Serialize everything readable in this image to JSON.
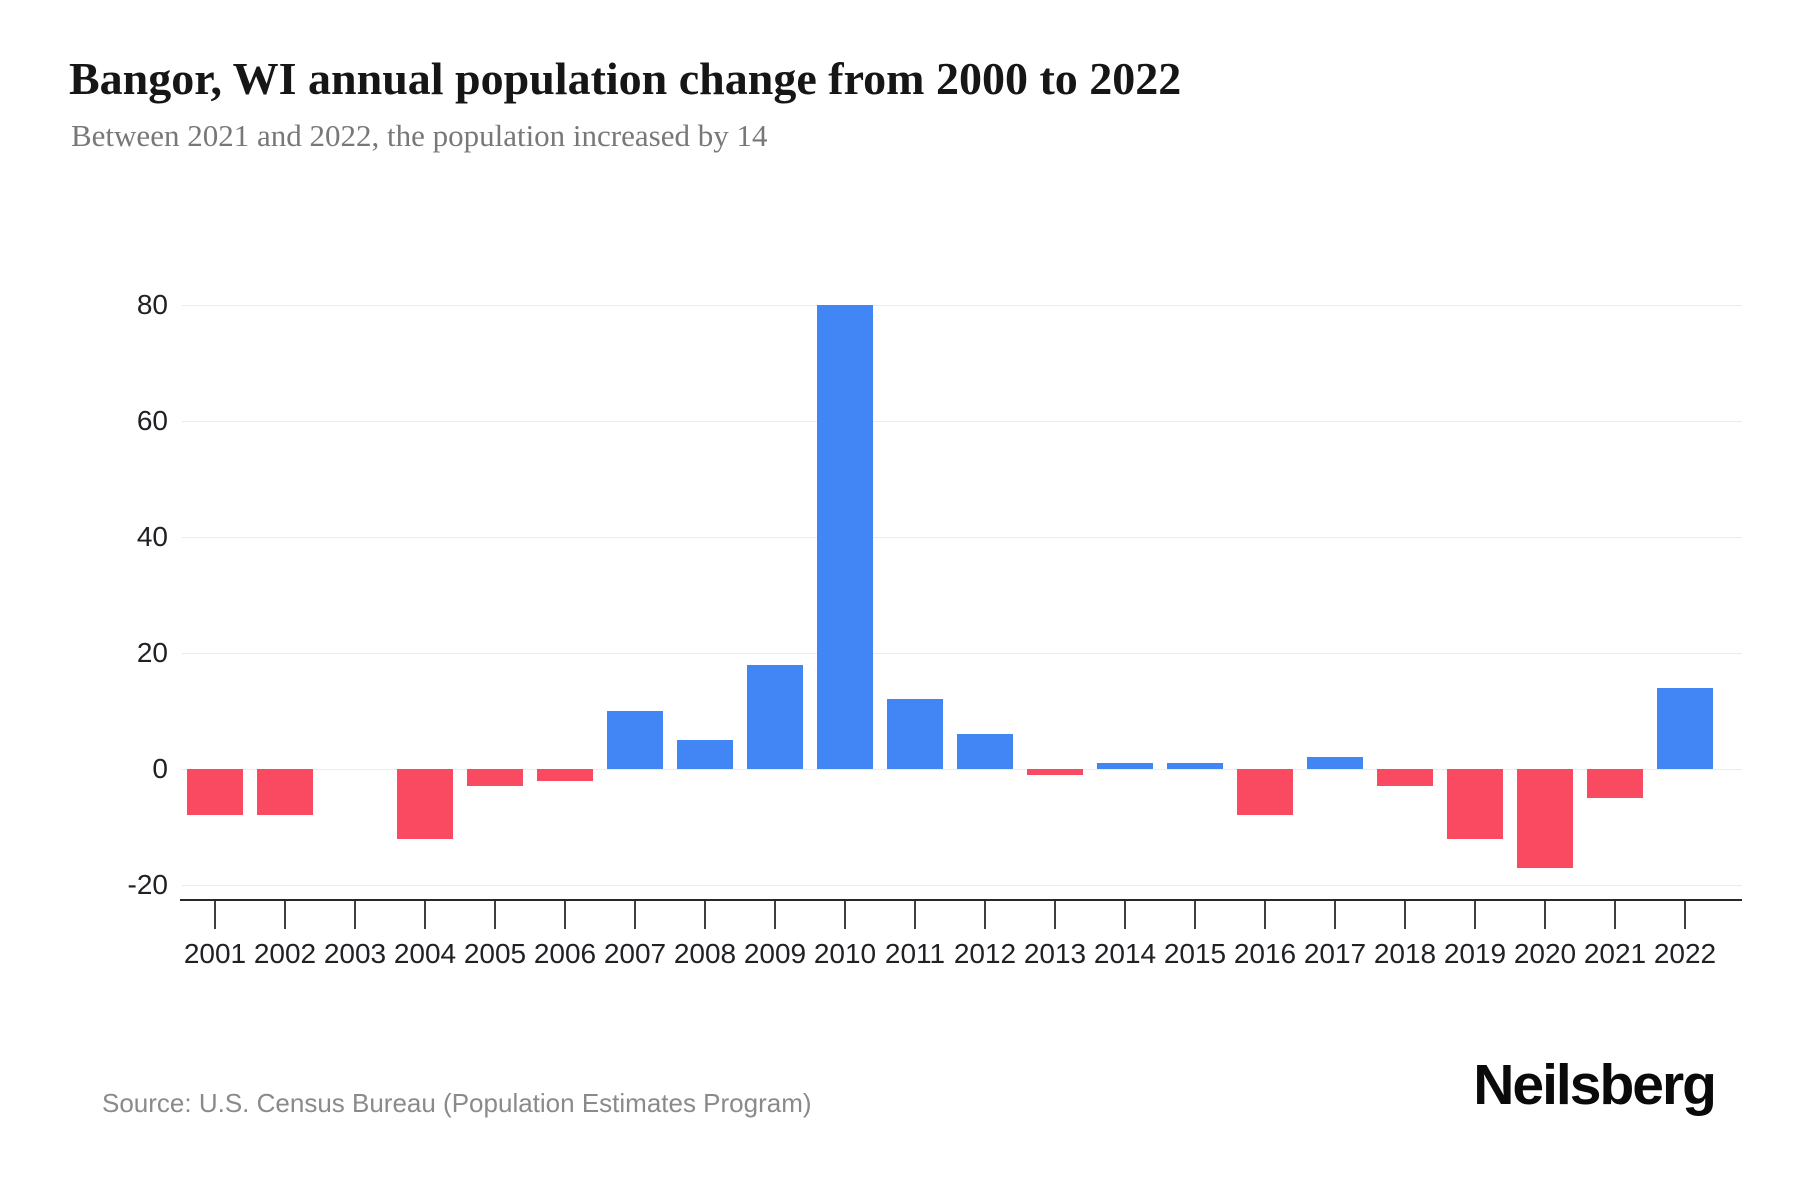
{
  "header": {
    "title": "Bangor, WI annual population change from 2000 to 2022",
    "subtitle": "Between 2021 and 2022, the population increased by 14"
  },
  "footer": {
    "source": "Source: U.S. Census Bureau (Population Estimates Program)",
    "brand": "Neilsberg"
  },
  "chart_data": {
    "type": "bar",
    "title": "Bangor, WI annual population change from 2000 to 2022",
    "xlabel": "",
    "ylabel": "",
    "categories": [
      "2001",
      "2002",
      "2003",
      "2004",
      "2005",
      "2006",
      "2007",
      "2008",
      "2009",
      "2010",
      "2011",
      "2012",
      "2013",
      "2014",
      "2015",
      "2016",
      "2017",
      "2018",
      "2019",
      "2020",
      "2021",
      "2022"
    ],
    "values": [
      -8,
      -8,
      0,
      -12,
      -3,
      -2,
      10,
      5,
      18,
      80,
      12,
      6,
      -1,
      1,
      1,
      -8,
      2,
      -3,
      -12,
      -17,
      -5,
      14
    ],
    "ylim": [
      -20,
      80
    ],
    "yticks": [
      80,
      60,
      40,
      20,
      0,
      -20
    ],
    "grid": true,
    "legend": "none",
    "colors": {
      "positive": "#4285f4",
      "negative": "#fa4a61",
      "gridline": "#ececec",
      "axis": "#27292b"
    }
  }
}
